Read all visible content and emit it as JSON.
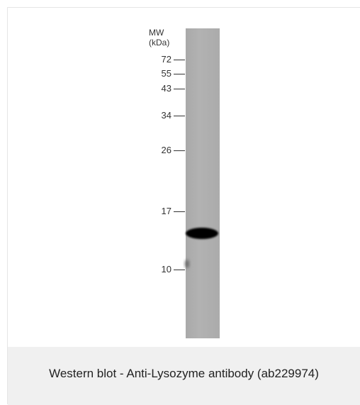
{
  "figure": {
    "marker_header_line1": "MW",
    "marker_header_line2": "(kDa)",
    "markers": [
      {
        "label": "72"
      },
      {
        "label": "55"
      },
      {
        "label": "43"
      },
      {
        "label": "34"
      },
      {
        "label": "26"
      },
      {
        "label": "17"
      },
      {
        "label": "10"
      }
    ],
    "band": {
      "approx_kda": 14
    }
  },
  "caption": {
    "text": "Western blot - Anti-Lysozyme antibody (ab229974)"
  }
}
